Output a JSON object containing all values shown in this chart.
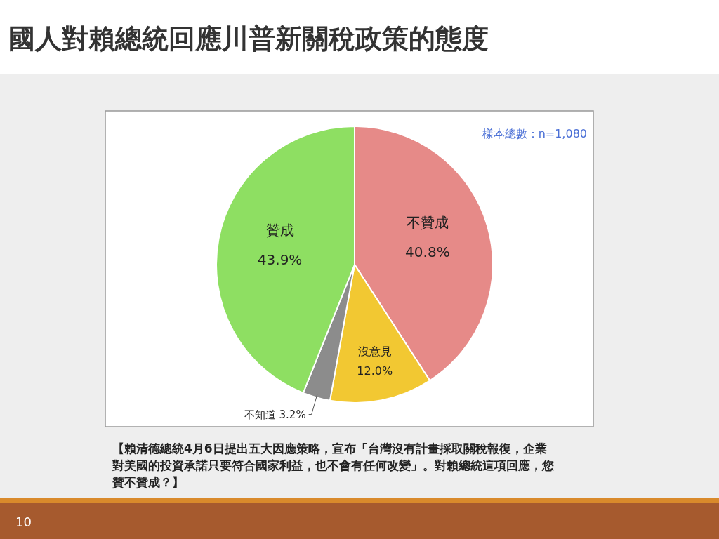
{
  "chart_data": {
    "type": "pie",
    "title": "國人對賴總統回應川普新關稅政策的態度",
    "categories": [
      "不贊成",
      "沒意見",
      "不知道",
      "贊成"
    ],
    "values": [
      40.8,
      12.0,
      3.2,
      43.9
    ],
    "colors": [
      "#e68a88",
      "#f2c832",
      "#8c8c8c",
      "#8edf62"
    ],
    "value_labels": [
      "40.8%",
      "12.0%",
      "3.2%",
      "43.9%"
    ],
    "annotations": [
      "樣本總數：n=1,080",
      "【賴清德總統4月6日提出五大因應策略，宣布「台灣沒有計畫採取關稅報復，企業對美國的投資承諾只要符合國家利益，也不會有任何改變」。對賴總統這項回應，您贊不贊成？】",
      "10"
    ]
  }
}
